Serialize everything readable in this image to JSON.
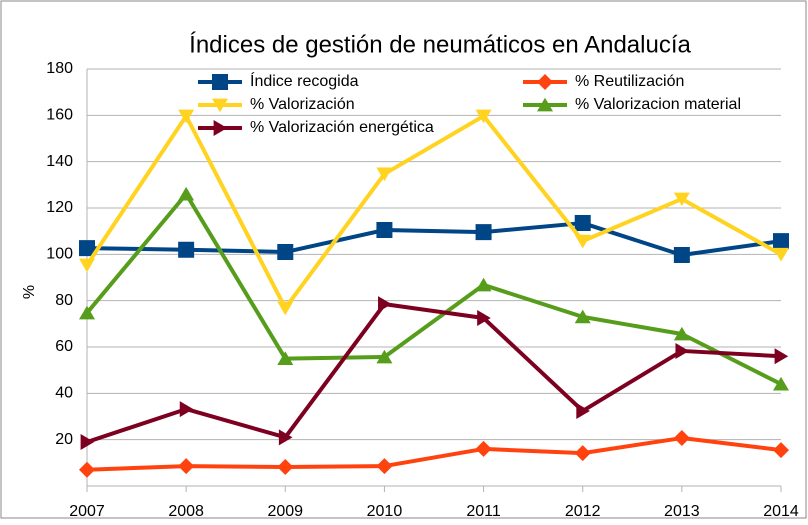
{
  "chart_data": {
    "type": "line",
    "title": "Índices de gestión de neumáticos en Andalucía",
    "y_label": "%",
    "categories": [
      "2007",
      "2008",
      "2009",
      "2010",
      "2011",
      "2012",
      "2013",
      "2014"
    ],
    "series": [
      {
        "name": "Índice recogida",
        "color": "#004586",
        "marker": "square",
        "values": [
          102.7,
          102,
          101,
          110.5,
          109.6,
          113.5,
          99.7,
          105.7
        ]
      },
      {
        "name": "% Reutilización",
        "color": "#ff420e",
        "marker": "diamond",
        "values": [
          7,
          8.6,
          8.2,
          8.6,
          16,
          14.2,
          20.7,
          15.5
        ]
      },
      {
        "name": "% Valorización",
        "color": "#ffd320",
        "marker": "triangle-down",
        "values": [
          95.4,
          159.7,
          76.8,
          134.7,
          159.7,
          105.7,
          123.9,
          100
        ]
      },
      {
        "name": "% Valorizacion material",
        "color": "#579d1c",
        "marker": "triangle-up",
        "values": [
          74.7,
          126,
          55,
          55.7,
          86.8,
          73,
          65.6,
          44
        ]
      },
      {
        "name": "% Valorización energética",
        "color": "#7e0021",
        "marker": "triangle-right",
        "values": [
          19,
          33.2,
          21,
          78.5,
          72.5,
          32.4,
          58.3,
          56
        ]
      }
    ],
    "ylim": [
      0,
      180
    ],
    "yticks": [
      20,
      40,
      60,
      80,
      100,
      120,
      140,
      160,
      180
    ],
    "grid": true,
    "legend": "top"
  }
}
